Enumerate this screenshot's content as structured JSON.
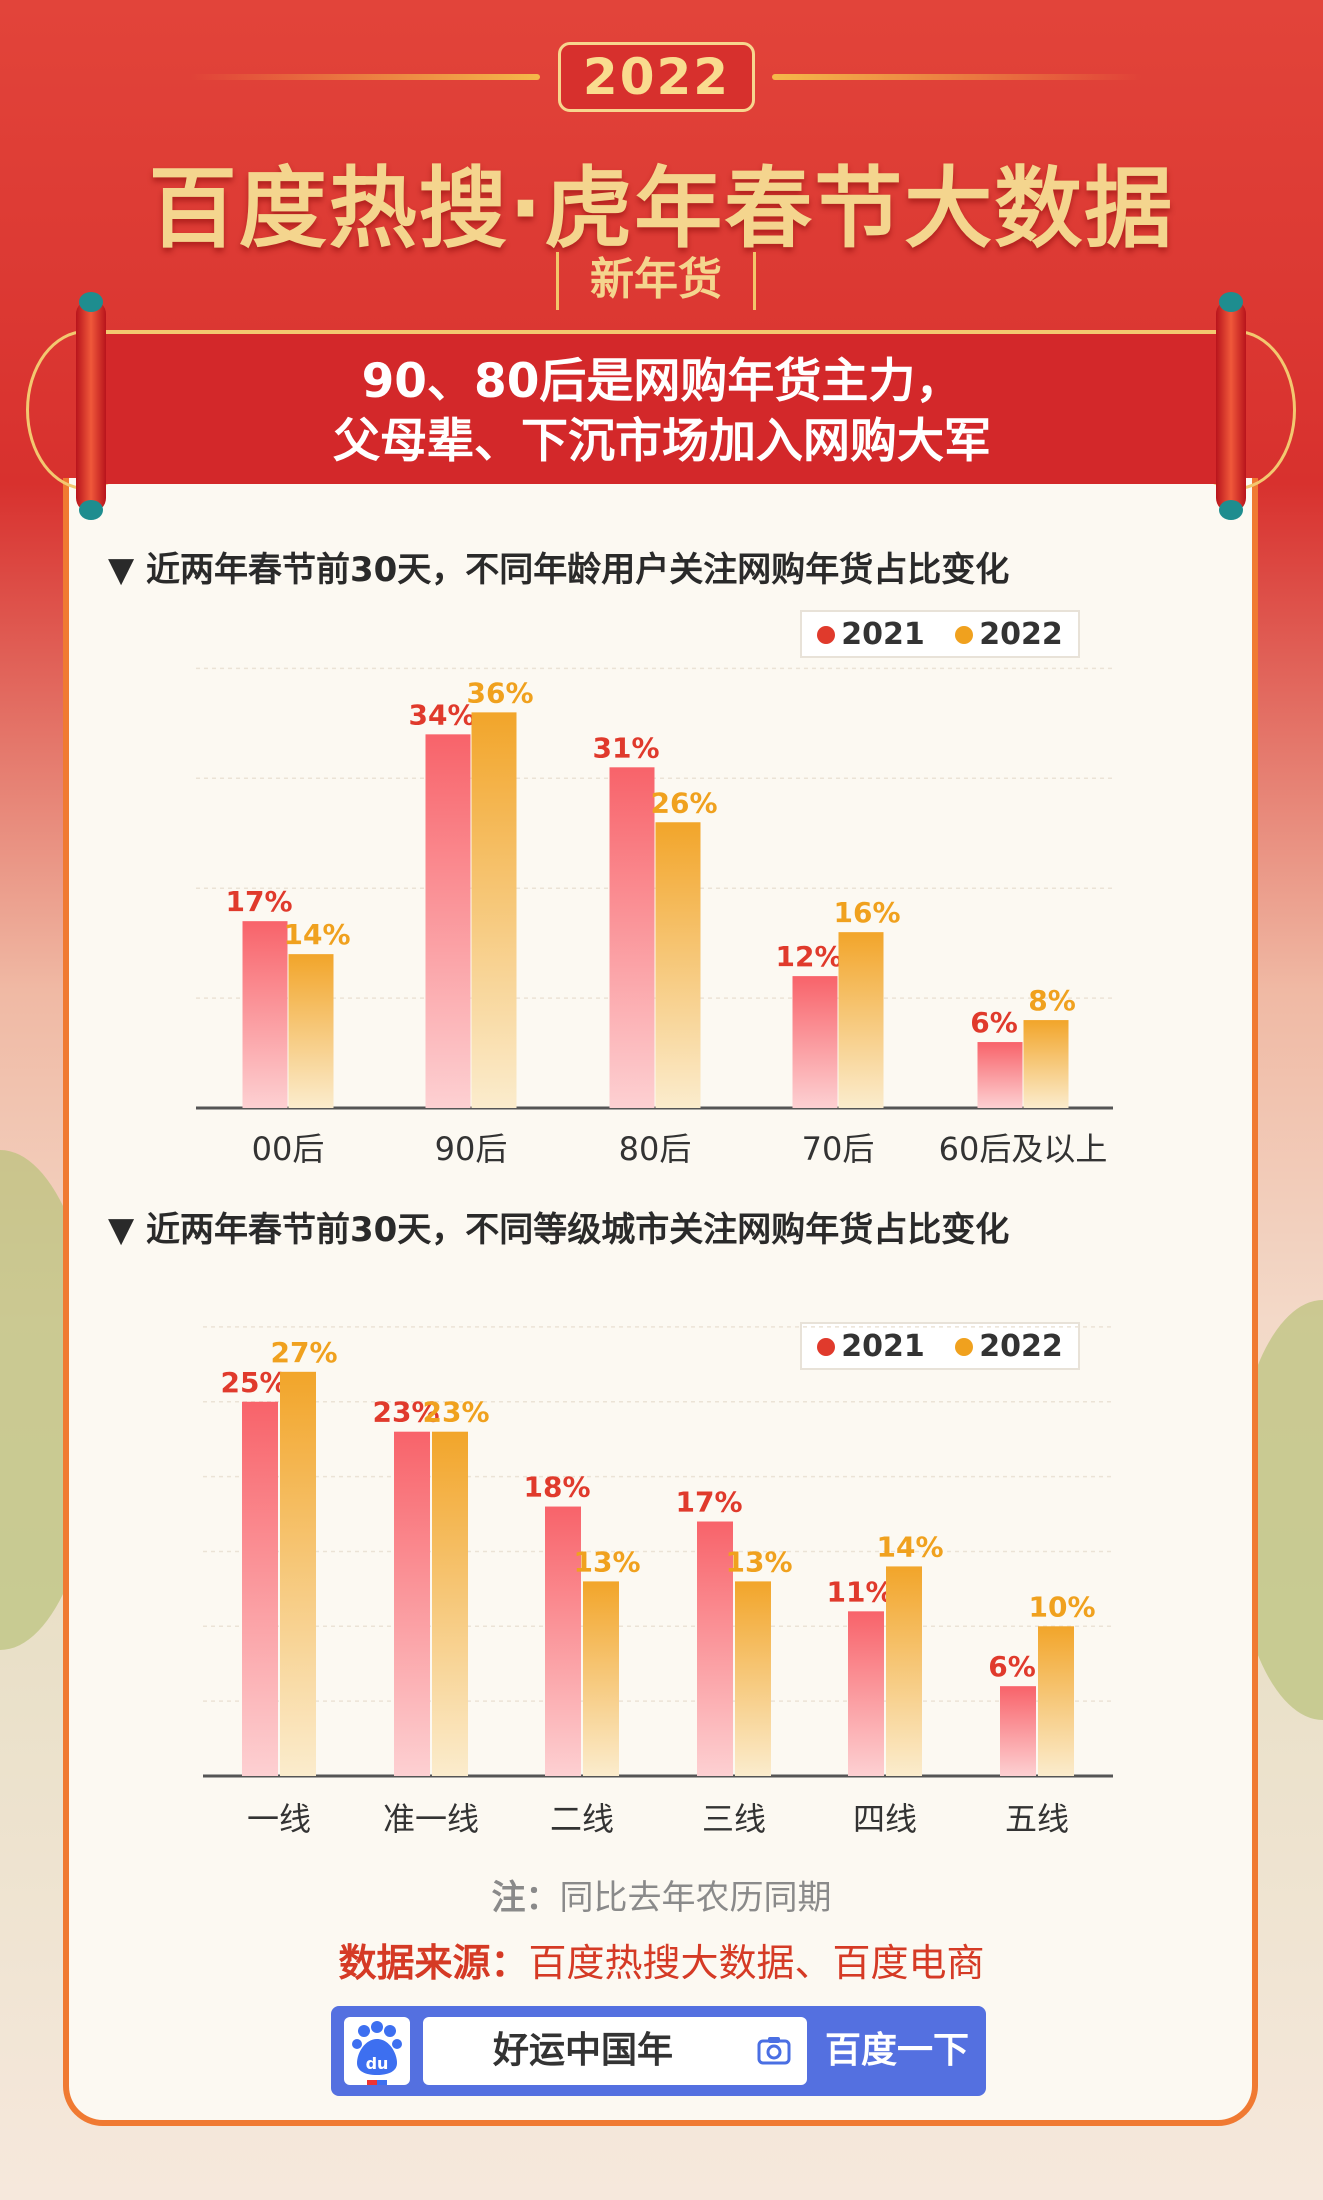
{
  "header": {
    "year": "2022",
    "title": "百度热搜·虎年春节大数据",
    "subtitle": "新年货",
    "banner_lines": [
      "90、80后是网购年货主力，",
      "父母辈、下沉市场加入网购大军"
    ]
  },
  "colors": {
    "c2021": "#f25a5d",
    "c2022": "#f0a11e",
    "label2021": "#e03a2c",
    "label2022": "#f0a11e"
  },
  "chart_data": [
    {
      "type": "bar",
      "title": "近两年春节前30天，不同年龄用户关注网购年货占比变化",
      "categories": [
        "00后",
        "90后",
        "80后",
        "70后",
        "60后及以上"
      ],
      "series": [
        {
          "name": "2021",
          "values": [
            17,
            34,
            31,
            12,
            6
          ]
        },
        {
          "name": "2022",
          "values": [
            14,
            36,
            26,
            16,
            8
          ]
        }
      ],
      "unit": "%",
      "ylim": [
        0,
        40
      ],
      "grid": true,
      "legend": "top-right"
    },
    {
      "type": "bar",
      "title": "近两年春节前30天，不同等级城市关注网购年货占比变化",
      "categories": [
        "一线",
        "准一线",
        "二线",
        "三线",
        "四线",
        "五线"
      ],
      "series": [
        {
          "name": "2021",
          "values": [
            25,
            23,
            18,
            17,
            11,
            6
          ]
        },
        {
          "name": "2022",
          "values": [
            27,
            23,
            13,
            13,
            14,
            10
          ]
        }
      ],
      "unit": "%",
      "ylim": [
        0,
        30
      ],
      "grid": true,
      "legend": "top-right"
    }
  ],
  "footer": {
    "note_label": "注：",
    "note_text": "同比去年农历同期",
    "source_label": "数据来源：",
    "source_text": "百度热搜大数据、百度电商"
  },
  "search": {
    "query": "好运中国年",
    "button": "百度一下",
    "logo_text": "du"
  }
}
